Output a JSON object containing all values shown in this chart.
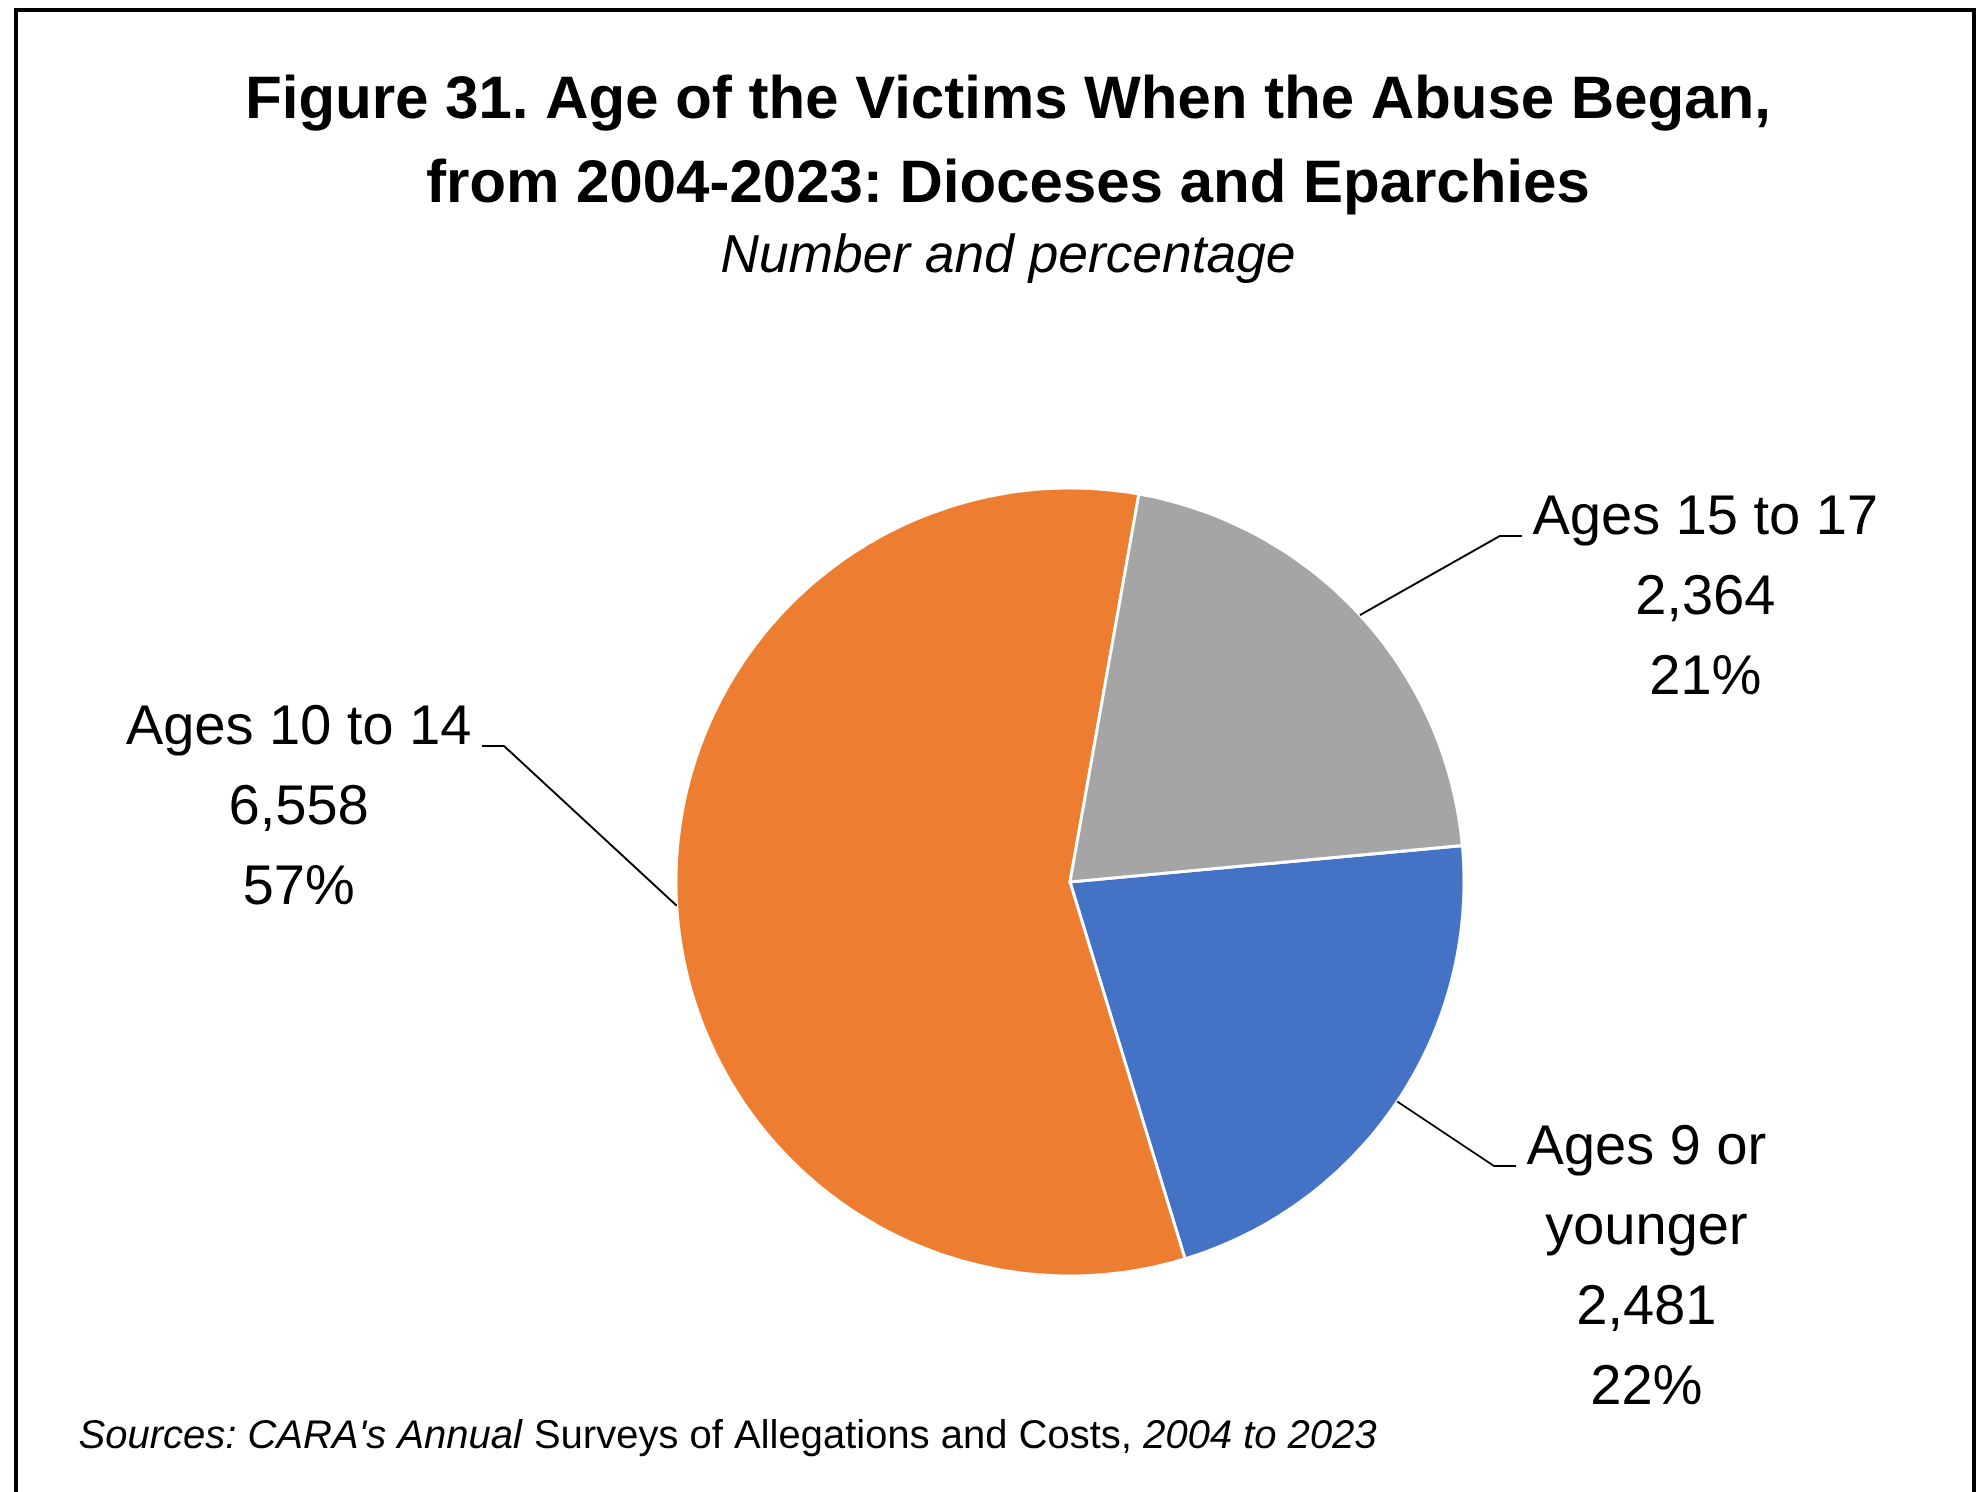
{
  "chart_data": {
    "type": "pie",
    "title": "Figure 31. Age of the Victims When the Abuse Began, from 2004-2023: Dioceses and Eparchies",
    "subtitle": "Number and percentage",
    "categories": [
      "Ages 9 or younger",
      "Ages 10 to 14",
      "Ages 15 to 17"
    ],
    "values": [
      2481,
      6558,
      2364
    ],
    "colors": [
      "#4472c4",
      "#ed7d31",
      "#a5a5a5"
    ],
    "value_labels": [
      "2,481 22%",
      "6,558 57%",
      "2,364 21%"
    ],
    "annotations": [
      "*Sources: CARA's Annual* Surveys of Allegations and Costs, *2004 to 2023*"
    ]
  }
}
